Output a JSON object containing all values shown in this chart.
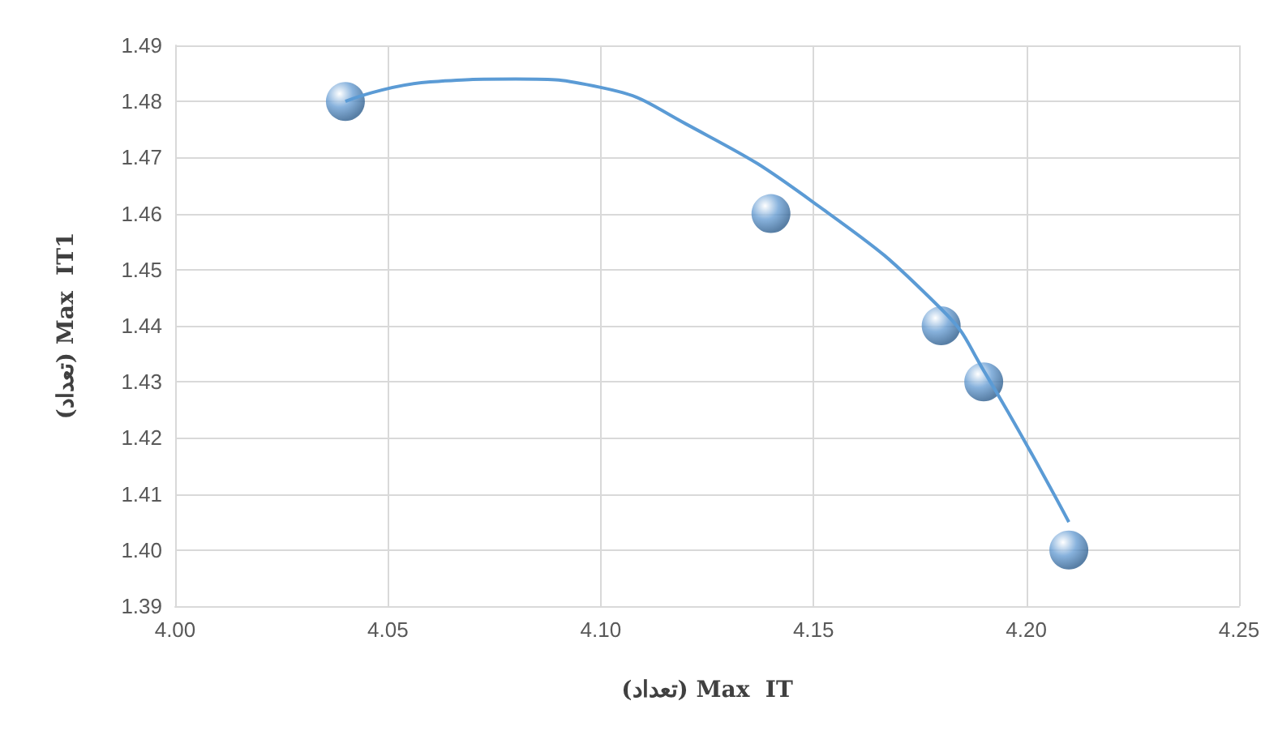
{
  "chart_data": {
    "type": "scatter",
    "xlabel": "(تعداد) Max  IT",
    "ylabel": "(تعداد) Max  IT1",
    "x": [
      4.04,
      4.14,
      4.18,
      4.19,
      4.21
    ],
    "series": [
      {
        "color": "#6a9fd4",
        "marker": "circle",
        "values": [
          1.48,
          1.46,
          1.44,
          1.43,
          1.4
        ]
      },
      {
        "type": "line",
        "color": "#5b9bd5",
        "marker": "none",
        "x": [
          4.04,
          4.06,
          4.08,
          4.1,
          4.12,
          4.15,
          4.18,
          4.19,
          4.21
        ],
        "values": [
          1.48,
          1.4835,
          1.484,
          1.4825,
          1.476,
          1.462,
          1.443,
          1.432,
          1.405
        ]
      }
    ],
    "xlim": [
      4.0,
      4.25
    ],
    "xticks": [
      {
        "value": 4.0,
        "label": "4.00"
      },
      {
        "value": 4.05,
        "label": "4.05"
      },
      {
        "value": 4.1,
        "label": "4.10"
      },
      {
        "value": 4.15,
        "label": "4.15"
      },
      {
        "value": 4.2,
        "label": "4.20"
      },
      {
        "value": 4.25,
        "label": "4.25"
      }
    ],
    "ylim": [
      1.39,
      1.49
    ],
    "yticks": [
      1.39,
      {
        "value": 1.4,
        "label": "1.40"
      },
      1.41,
      1.42,
      1.43,
      1.44,
      1.45,
      1.46,
      1.47,
      1.48,
      1.49
    ],
    "grid": true
  }
}
